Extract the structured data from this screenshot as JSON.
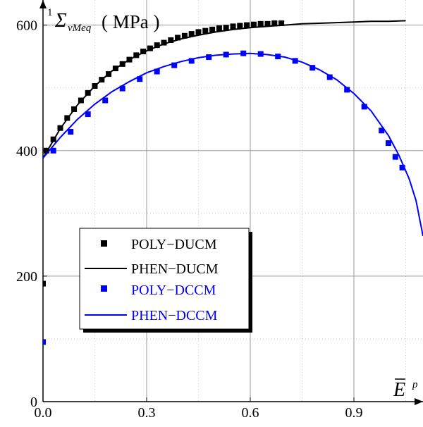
{
  "chart_data": {
    "type": "scatter",
    "y_axis_label": {
      "prefix": "1",
      "symbol": "Σ",
      "subscript": "vMeq",
      "unit_text": "( MPa )"
    },
    "x_axis_label": {
      "symbol": "E",
      "superscript": "p"
    },
    "xlim": [
      0,
      1.1
    ],
    "ylim": [
      0,
      640
    ],
    "x_ticks": [
      "0.0",
      "0.3",
      "0.6",
      "0.9"
    ],
    "y_ticks": [
      "0",
      "200",
      "400",
      "600"
    ],
    "grid": true,
    "legend_position": "left-middle",
    "series": [
      {
        "name": "POLY−DUCM",
        "kind": "markers",
        "color": "#000000",
        "points": [
          [
            0.0,
            188
          ],
          [
            0.01,
            400
          ],
          [
            0.03,
            418
          ],
          [
            0.05,
            436
          ],
          [
            0.07,
            452
          ],
          [
            0.09,
            466
          ],
          [
            0.11,
            480
          ],
          [
            0.13,
            492
          ],
          [
            0.15,
            503
          ],
          [
            0.17,
            513
          ],
          [
            0.19,
            522
          ],
          [
            0.21,
            531
          ],
          [
            0.23,
            538
          ],
          [
            0.25,
            545
          ],
          [
            0.27,
            552
          ],
          [
            0.29,
            558
          ],
          [
            0.31,
            563
          ],
          [
            0.33,
            568
          ],
          [
            0.35,
            572
          ],
          [
            0.37,
            576
          ],
          [
            0.39,
            580
          ],
          [
            0.41,
            583
          ],
          [
            0.43,
            586
          ],
          [
            0.45,
            589
          ],
          [
            0.47,
            591
          ],
          [
            0.49,
            593
          ],
          [
            0.51,
            595
          ],
          [
            0.53,
            596
          ],
          [
            0.55,
            598
          ],
          [
            0.57,
            599
          ],
          [
            0.59,
            600
          ],
          [
            0.61,
            601
          ],
          [
            0.63,
            602
          ],
          [
            0.65,
            602
          ],
          [
            0.67,
            603
          ],
          [
            0.69,
            603
          ]
        ]
      },
      {
        "name": "PHEN−DUCM",
        "kind": "line",
        "color": "#000000",
        "x": [
          0.0,
          0.05,
          0.1,
          0.15,
          0.2,
          0.25,
          0.3,
          0.35,
          0.4,
          0.45,
          0.5,
          0.55,
          0.6,
          0.65,
          0.7,
          0.75,
          0.8,
          0.85,
          0.9,
          0.95,
          1.0,
          1.05
        ],
        "y": [
          388,
          435,
          473,
          503,
          527,
          545,
          559,
          570,
          578,
          584,
          589,
          593,
          596,
          598,
          600,
          602,
          603,
          604,
          605,
          606,
          606,
          607
        ]
      },
      {
        "name": "POLY−DCCM",
        "kind": "markers",
        "color": "#0000ff",
        "points": [
          [
            0.0,
            95
          ],
          [
            0.03,
            400
          ],
          [
            0.08,
            430
          ],
          [
            0.13,
            458
          ],
          [
            0.18,
            480
          ],
          [
            0.23,
            499
          ],
          [
            0.28,
            514
          ],
          [
            0.33,
            526
          ],
          [
            0.38,
            536
          ],
          [
            0.43,
            543
          ],
          [
            0.48,
            549
          ],
          [
            0.53,
            553
          ],
          [
            0.58,
            555
          ],
          [
            0.63,
            554
          ],
          [
            0.68,
            550
          ],
          [
            0.73,
            543
          ],
          [
            0.78,
            532
          ],
          [
            0.83,
            517
          ],
          [
            0.88,
            497
          ],
          [
            0.93,
            470
          ],
          [
            0.98,
            432
          ],
          [
            1.0,
            412
          ],
          [
            1.02,
            390
          ],
          [
            1.04,
            373
          ]
        ]
      },
      {
        "name": "PHEN−DCCM",
        "kind": "line",
        "color": "#0000ff",
        "x": [
          0.0,
          0.05,
          0.1,
          0.15,
          0.2,
          0.25,
          0.3,
          0.35,
          0.4,
          0.45,
          0.5,
          0.55,
          0.6,
          0.65,
          0.7,
          0.75,
          0.8,
          0.85,
          0.9,
          0.95,
          1.0,
          1.03,
          1.06,
          1.08,
          1.1
        ],
        "y": [
          388,
          421,
          450,
          474,
          494,
          510,
          524,
          534,
          542,
          548,
          552,
          554,
          555,
          553,
          549,
          541,
          529,
          513,
          491,
          463,
          424,
          393,
          355,
          320,
          264
        ]
      }
    ]
  }
}
